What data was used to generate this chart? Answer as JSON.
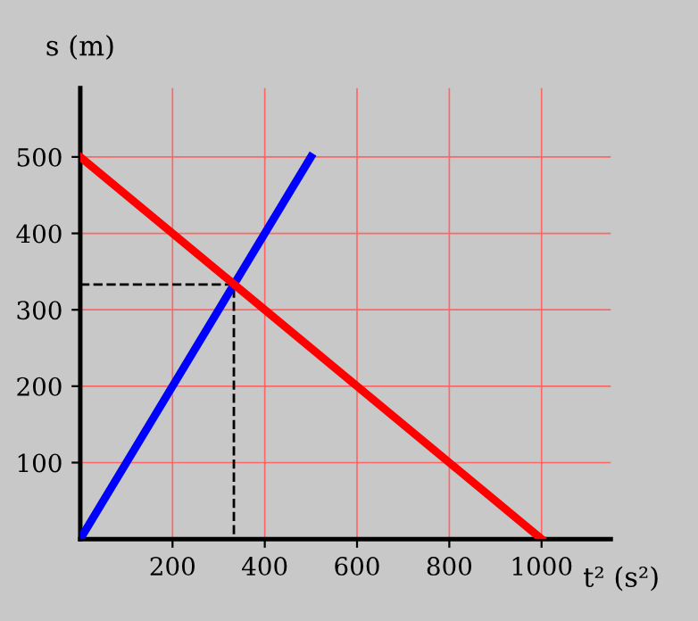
{
  "chart_data": {
    "type": "line",
    "xlabel": "t² (s²)",
    "ylabel": "s (m)",
    "xlim": [
      0,
      1150
    ],
    "ylim": [
      0,
      590
    ],
    "xticks": [
      200,
      400,
      600,
      800,
      1000
    ],
    "yticks": [
      100,
      200,
      300,
      400,
      500
    ],
    "grid": true,
    "series": [
      {
        "color": "#0000ff",
        "x": [
          0,
          500
        ],
        "values": [
          0,
          500
        ]
      },
      {
        "color": "#ff0000",
        "x": [
          0,
          1000
        ],
        "values": [
          500,
          0
        ]
      },
      {
        "color": "#000000",
        "x": [
          0,
          333,
          333
        ],
        "values": [
          333,
          333,
          0
        ],
        "line_style": "dashed"
      }
    ]
  }
}
